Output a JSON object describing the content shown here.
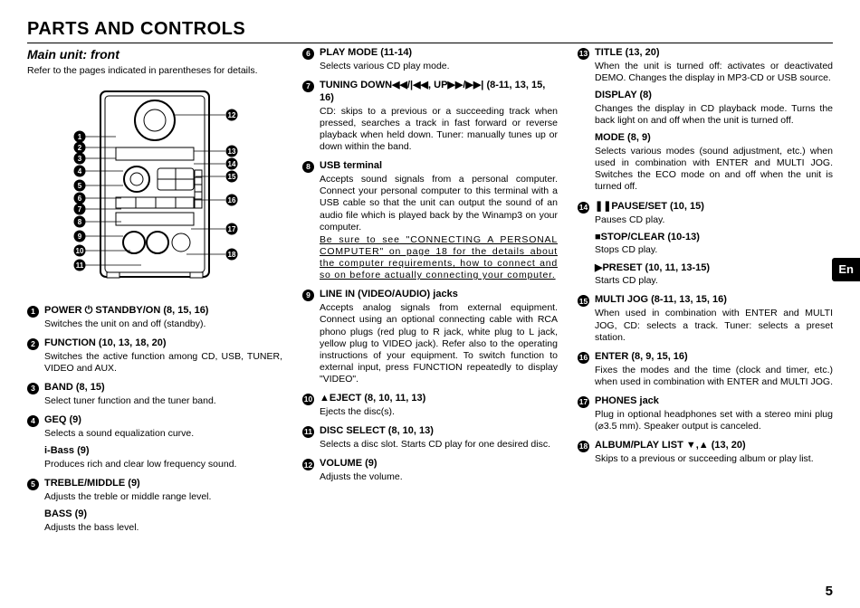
{
  "page": {
    "title": "PARTS AND CONTROLS",
    "subtitle": "Main unit: front",
    "subnote": "Refer to the pages indicated in parentheses for details.",
    "lang_tab": "En",
    "page_number": "5"
  },
  "diagram": {
    "left_callouts": [
      "1",
      "2",
      "3",
      "4",
      "5",
      "6",
      "7",
      "8",
      "9",
      "10",
      "11"
    ],
    "right_callouts": [
      "12",
      "13",
      "14",
      "15",
      "16",
      "17",
      "18"
    ]
  },
  "col1": [
    {
      "num": "1",
      "title": "POWER ⏻ STANDBY/ON (8, 15, 16)",
      "body": "Switches the unit on and off (standby)."
    },
    {
      "num": "2",
      "title": "FUNCTION (10, 13, 18, 20)",
      "body": "Switches the active function among CD, USB, TUNER, VIDEO and AUX."
    },
    {
      "num": "3",
      "title": "BAND (8, 15)",
      "body": "Select tuner function and the tuner band."
    },
    {
      "num": "4",
      "title": "GEQ (9)",
      "body": "Selects a sound equalization curve.",
      "sub": {
        "title": "i-Bass (9)",
        "body": "Produces rich and clear low frequency sound."
      }
    },
    {
      "num": "5",
      "title": "TREBLE/MIDDLE (9)",
      "body": "Adjusts the treble or middle range level.",
      "sub": {
        "title": "BASS (9)",
        "body": "Adjusts the bass level."
      }
    }
  ],
  "col2": [
    {
      "num": "6",
      "title": "PLAY MODE (11-14)",
      "body": "Selects various CD play mode."
    },
    {
      "num": "7",
      "title": "TUNING DOWN◀◀/|◀◀, UP▶▶/▶▶| (8-11, 13, 15, 16)",
      "body": "CD: skips to a previous or a succeeding track when pressed, searches a track in fast forward or reverse playback when held down.\nTuner: manually tunes up or down within the band."
    },
    {
      "num": "8",
      "title": "USB terminal",
      "body": "Accepts sound signals from a personal computer.\nConnect your personal computer to this terminal with a USB cable so that the unit can output the sound of an audio file which is played back by the Winamp3 on your computer.",
      "underline": "Be sure to see \"CONNECTING A PERSONAL COMPUTER\" on page 18 for the details about the computer requirements, how to connect and so on before actually connecting your computer."
    },
    {
      "num": "9",
      "title": "LINE IN (VIDEO/AUDIO) jacks",
      "body": "Accepts analog signals from external equipment.\nConnect using an optional connecting cable with RCA phono plugs (red plug to R jack, white plug to L jack, yellow plug to VIDEO jack).\nRefer also to the operating instructions of your equipment. To switch function to external input, press FUNCTION repeatedly to display \"VIDEO\"."
    },
    {
      "num": "10",
      "title": "▲EJECT (8, 10, 11, 13)",
      "body": "Ejects the disc(s)."
    },
    {
      "num": "11",
      "title": "DISC SELECT (8, 10, 13)",
      "body": "Selects a disc slot.\nStarts CD play for one desired disc."
    },
    {
      "num": "12",
      "title": "VOLUME (9)",
      "body": "Adjusts the volume."
    }
  ],
  "col3": [
    {
      "num": "13",
      "title": "TITLE (13, 20)",
      "body": "When the unit is turned off: activates or deactivated DEMO.\nChanges the display in MP3-CD or USB source.",
      "subs": [
        {
          "title": "DISPLAY (8)",
          "body": "Changes the display in CD playback mode.\nTurns the back light on and off when the unit is turned off."
        },
        {
          "title": "MODE (8, 9)",
          "body": "Selects various modes (sound adjustment, etc.) when used in combination with ENTER and MULTI JOG.\nSwitches the ECO mode on and off when the unit is turned off."
        }
      ]
    },
    {
      "num": "14",
      "title": "❚❚PAUSE/SET (10, 15)",
      "body": "Pauses CD play.",
      "subs": [
        {
          "title": "■STOP/CLEAR (10-13)",
          "body": "Stops CD play."
        },
        {
          "title": "▶PRESET (10, 11, 13-15)",
          "body": "Starts CD play."
        }
      ]
    },
    {
      "num": "15",
      "title": "MULTI JOG (8-11, 13, 15, 16)",
      "body": "When used in combination with ENTER and MULTI JOG, CD: selects a track.\nTuner: selects a preset station."
    },
    {
      "num": "16",
      "title": "ENTER (8, 9, 15, 16)",
      "body": "Fixes the modes and the time (clock and timer, etc.) when used in combination with ENTER and MULTI JOG."
    },
    {
      "num": "17",
      "title": "PHONES jack",
      "body": "Plug in optional headphones set with a stereo mini plug (⌀3.5 mm). Speaker output is canceled."
    },
    {
      "num": "18",
      "title": "ALBUM/PLAY LIST ▼,▲ (13, 20)",
      "body": "Skips to a previous or succeeding album or play list."
    }
  ]
}
